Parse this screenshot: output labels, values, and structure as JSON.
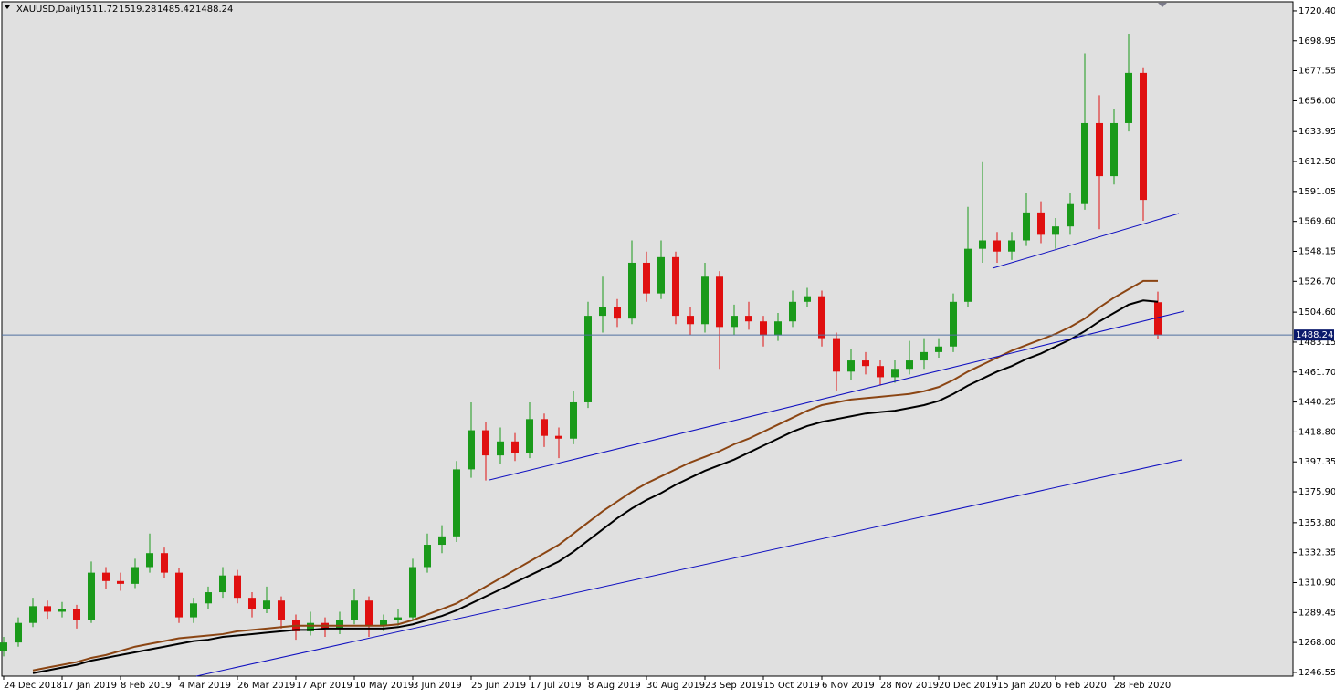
{
  "header": {
    "symbol": "XAUUSD,Daily",
    "open": 1511.72,
    "high": 1519.28,
    "low": 1485.42,
    "close": 1488.24
  },
  "chart_data": {
    "type": "candlestick",
    "up_color": "#1a9a1a",
    "down_color": "#e01010",
    "ylim": [
      1243.9,
      1726.9
    ],
    "yticks": [
      {
        "value": 1720.4,
        "label": "1720.40"
      },
      {
        "value": 1698.95,
        "label": "1698.95"
      },
      {
        "value": 1677.55,
        "label": "1677.55"
      },
      {
        "value": 1656,
        "label": "1656.00"
      },
      {
        "value": 1633.95,
        "label": "1633.95"
      },
      {
        "value": 1612.5,
        "label": "1612.50"
      },
      {
        "value": 1591.05,
        "label": "1591.05"
      },
      {
        "value": 1569.6,
        "label": "1569.60"
      },
      {
        "value": 1548.15,
        "label": "1548.15"
      },
      {
        "value": 1526.7,
        "label": "1526.70"
      },
      {
        "value": 1504.6,
        "label": "1504.60"
      },
      {
        "value": 1483.15,
        "label": "1483.15"
      },
      {
        "value": 1461.7,
        "label": "1461.70"
      },
      {
        "value": 1440.25,
        "label": "1440.25"
      },
      {
        "value": 1418.8,
        "label": "1418.80"
      },
      {
        "value": 1397.35,
        "label": "1397.35"
      },
      {
        "value": 1375.9,
        "label": "1375.90"
      },
      {
        "value": 1353.8,
        "label": "1353.80"
      },
      {
        "value": 1332.35,
        "label": "1332.35"
      },
      {
        "value": 1310.9,
        "label": "1310.90"
      },
      {
        "value": 1289.45,
        "label": "1289.45"
      },
      {
        "value": 1268,
        "label": "1268.00"
      },
      {
        "value": 1246.55,
        "label": "1246.55"
      }
    ],
    "x_labels": [
      "24 Dec 2018",
      "17 Jan 2019",
      "8 Feb 2019",
      "4 Mar 2019",
      "26 Mar 2019",
      "17 Apr 2019",
      "10 May 2019",
      "3 Jun 2019",
      "25 Jun 2019",
      "17 Jul 2019",
      "8 Aug 2019",
      "30 Aug 2019",
      "23 Sep 2019",
      "15 Oct 2019",
      "6 Nov 2019",
      "28 Nov 2019",
      "20 Dec 2019",
      "15 Jan 2020",
      "6 Feb 2020",
      "28 Feb 2020"
    ],
    "current_price": 1488.24,
    "candles": [
      [
        1262,
        1272,
        1258,
        1268
      ],
      [
        1268,
        1286,
        1265,
        1282
      ],
      [
        1282,
        1300,
        1279,
        1294
      ],
      [
        1294,
        1298,
        1285,
        1290
      ],
      [
        1290,
        1297,
        1286,
        1292
      ],
      [
        1292,
        1295,
        1278,
        1284
      ],
      [
        1284,
        1326,
        1282,
        1318
      ],
      [
        1318,
        1322,
        1306,
        1312
      ],
      [
        1312,
        1318,
        1305,
        1310
      ],
      [
        1310,
        1328,
        1307,
        1322
      ],
      [
        1322,
        1346,
        1318,
        1332
      ],
      [
        1332,
        1336,
        1314,
        1318
      ],
      [
        1318,
        1321,
        1282,
        1286
      ],
      [
        1286,
        1300,
        1282,
        1296
      ],
      [
        1296,
        1308,
        1292,
        1304
      ],
      [
        1304,
        1322,
        1300,
        1316
      ],
      [
        1316,
        1320,
        1296,
        1300
      ],
      [
        1300,
        1304,
        1286,
        1292
      ],
      [
        1292,
        1308,
        1289,
        1298
      ],
      [
        1298,
        1301,
        1278,
        1284
      ],
      [
        1284,
        1288,
        1270,
        1276
      ],
      [
        1276,
        1290,
        1273,
        1282
      ],
      [
        1282,
        1286,
        1272,
        1278
      ],
      [
        1278,
        1290,
        1274,
        1284
      ],
      [
        1284,
        1306,
        1281,
        1298
      ],
      [
        1298,
        1301,
        1272,
        1280
      ],
      [
        1280,
        1288,
        1276,
        1284
      ],
      [
        1284,
        1292,
        1280,
        1286
      ],
      [
        1286,
        1328,
        1284,
        1322
      ],
      [
        1322,
        1346,
        1318,
        1338
      ],
      [
        1338,
        1352,
        1332,
        1344
      ],
      [
        1344,
        1398,
        1340,
        1392
      ],
      [
        1392,
        1440,
        1386,
        1420
      ],
      [
        1420,
        1426,
        1384,
        1402
      ],
      [
        1402,
        1422,
        1396,
        1412
      ],
      [
        1412,
        1418,
        1398,
        1404
      ],
      [
        1404,
        1440,
        1400,
        1428
      ],
      [
        1428,
        1432,
        1408,
        1416
      ],
      [
        1416,
        1422,
        1400,
        1414
      ],
      [
        1414,
        1448,
        1410,
        1440
      ],
      [
        1440,
        1512,
        1436,
        1502
      ],
      [
        1502,
        1530,
        1490,
        1508
      ],
      [
        1508,
        1514,
        1494,
        1500
      ],
      [
        1500,
        1556,
        1496,
        1540
      ],
      [
        1540,
        1548,
        1512,
        1518
      ],
      [
        1518,
        1556,
        1514,
        1544
      ],
      [
        1544,
        1548,
        1496,
        1502
      ],
      [
        1502,
        1508,
        1488,
        1496
      ],
      [
        1496,
        1540,
        1490,
        1530
      ],
      [
        1530,
        1534,
        1464,
        1494
      ],
      [
        1494,
        1510,
        1488,
        1502
      ],
      [
        1502,
        1512,
        1492,
        1498
      ],
      [
        1498,
        1502,
        1480,
        1488
      ],
      [
        1488,
        1504,
        1484,
        1498
      ],
      [
        1498,
        1520,
        1494,
        1512
      ],
      [
        1512,
        1522,
        1508,
        1516
      ],
      [
        1516,
        1520,
        1480,
        1486
      ],
      [
        1486,
        1490,
        1448,
        1462
      ],
      [
        1462,
        1478,
        1456,
        1470
      ],
      [
        1470,
        1476,
        1460,
        1466
      ],
      [
        1466,
        1470,
        1452,
        1458
      ],
      [
        1458,
        1470,
        1454,
        1464
      ],
      [
        1464,
        1484,
        1460,
        1470
      ],
      [
        1470,
        1486,
        1464,
        1476
      ],
      [
        1476,
        1486,
        1472,
        1480
      ],
      [
        1480,
        1518,
        1476,
        1512
      ],
      [
        1512,
        1580,
        1508,
        1550
      ],
      [
        1550,
        1612,
        1540,
        1556
      ],
      [
        1556,
        1562,
        1540,
        1548
      ],
      [
        1548,
        1562,
        1542,
        1556
      ],
      [
        1556,
        1590,
        1552,
        1576
      ],
      [
        1576,
        1584,
        1554,
        1560
      ],
      [
        1560,
        1572,
        1550,
        1566
      ],
      [
        1566,
        1590,
        1560,
        1582
      ],
      [
        1582,
        1690,
        1578,
        1640
      ],
      [
        1640,
        1660,
        1564,
        1602
      ],
      [
        1602,
        1650,
        1596,
        1640
      ],
      [
        1640,
        1704,
        1634,
        1676
      ],
      [
        1676,
        1680,
        1570,
        1585
      ],
      [
        1511.72,
        1519.28,
        1485.42,
        1488.24
      ]
    ],
    "series": [
      {
        "color": "#8b4513",
        "values": [
          null,
          null,
          1248,
          1250,
          1252,
          1254,
          1257,
          1259,
          1262,
          1265,
          1267,
          1269,
          1271,
          1272,
          1273,
          1274,
          1276,
          1277,
          1278,
          1279,
          1280,
          1280,
          1280,
          1280,
          1280,
          1280,
          1280,
          1281,
          1284,
          1288,
          1292,
          1296,
          1302,
          1308,
          1314,
          1320,
          1326,
          1332,
          1338,
          1346,
          1354,
          1362,
          1369,
          1376,
          1382,
          1387,
          1392,
          1397,
          1401,
          1405,
          1410,
          1414,
          1419,
          1424,
          1429,
          1434,
          1438,
          1440,
          1442,
          1443,
          1444,
          1445,
          1446,
          1448,
          1451,
          1456,
          1462,
          1467,
          1472,
          1477,
          1481,
          1485,
          1489,
          1494,
          1500,
          1508,
          1515,
          1521,
          1527,
          1527
        ]
      },
      {
        "color": "#000000",
        "values": [
          null,
          null,
          1246,
          1248,
          1250,
          1252,
          1255,
          1257,
          1259,
          1261,
          1263,
          1265,
          1267,
          1269,
          1270,
          1272,
          1273,
          1274,
          1275,
          1276,
          1277,
          1277,
          1278,
          1278,
          1278,
          1278,
          1278,
          1279,
          1281,
          1284,
          1287,
          1291,
          1296,
          1301,
          1306,
          1311,
          1316,
          1321,
          1326,
          1333,
          1341,
          1349,
          1357,
          1364,
          1370,
          1375,
          1381,
          1386,
          1391,
          1395,
          1399,
          1404,
          1409,
          1414,
          1419,
          1423,
          1426,
          1428,
          1430,
          1432,
          1433,
          1434,
          1436,
          1438,
          1441,
          1446,
          1452,
          1457,
          1462,
          1466,
          1471,
          1475,
          1480,
          1485,
          1491,
          1498,
          1504,
          1510,
          1513,
          1512
        ]
      }
    ]
  }
}
